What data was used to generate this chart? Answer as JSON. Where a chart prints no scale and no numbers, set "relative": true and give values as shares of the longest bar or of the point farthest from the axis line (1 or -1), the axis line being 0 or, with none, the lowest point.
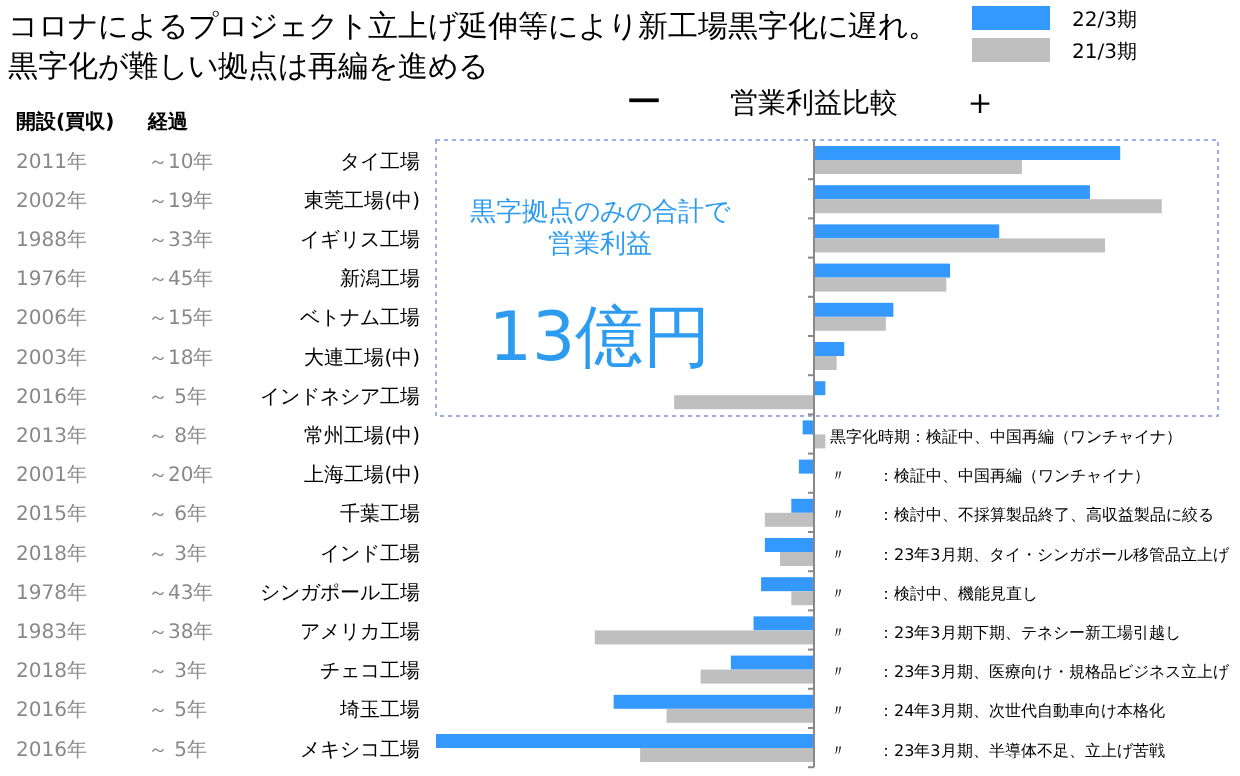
{
  "chart_data": {
    "type": "bar",
    "orientation": "horizontal",
    "relative": true,
    "title": "コロナによるプロジェクト立上げ延伸等により新工場黒字化に遅れ。黒字化が難しい拠点は再編を進める",
    "subtitle": "営業利益比較",
    "legend": "top right",
    "categories": [
      "タイ工場",
      "東莞工場(中)",
      "イギリス工場",
      "新潟工場",
      "ベトナム工場",
      "大連工場(中)",
      "インドネシア工場",
      "常州工場(中)",
      "上海工場(中)",
      "千葉工場",
      "インド工場",
      "シンガポール工場",
      "アメリカ工場",
      "チェコ工場",
      "埼玉工場",
      "メキシコ工場"
    ],
    "series": [
      {
        "name": "22/3期",
        "color": "#3399ff",
        "values": [
          0.81,
          0.73,
          0.49,
          0.36,
          0.21,
          0.08,
          0.03,
          -0.03,
          -0.04,
          -0.06,
          -0.13,
          -0.14,
          -0.16,
          -0.22,
          -0.53,
          -1
        ]
      },
      {
        "name": "21/3期",
        "color": "#bfbfbf",
        "values": [
          0.55,
          0.92,
          0.77,
          0.35,
          0.19,
          0.06,
          -0.37,
          0.03,
          null,
          -0.13,
          -0.09,
          -0.06,
          -0.58,
          -0.3,
          -0.39,
          -0.46
        ]
      }
    ],
    "annotations": [
      "開設(買収)",
      "経過",
      "ー",
      "＋",
      "黒字拠点のみの合計で営業利益",
      "13億円",
      "2011年",
      "2002年",
      "1988年",
      "1976年",
      "2006年",
      "2003年",
      "2016年",
      "2013年",
      "2001年",
      "2015年",
      "2018年",
      "1978年",
      "1983年",
      "2018年",
      "2016年",
      "2016年",
      "～10年",
      "～19年",
      "～33年",
      "～45年",
      "～15年",
      "～18年",
      "～ 5年",
      "～ 8年",
      "～20年",
      "～ 6年",
      "～ 3年",
      "～43年",
      "～38年",
      "～ 3年",
      "～ 5年",
      "～ 5年",
      "黒字化時期：検証中、中国再編（ワンチャイナ）",
      "〃　　：検証中、中国再編（ワンチャイナ）",
      "〃　　：検討中、不採算製品終了、高収益製品に絞る",
      "〃　　：23年3月期、タイ・シンガポール移管品立上げ",
      "〃　　：検討中、機能見直し",
      "〃　　：23年3月期下期、テネシー新工場引越し",
      "〃　　：23年3月期、医療向け・規格品ビジネス立上げ",
      "〃　　：24年3月期、次世代自動車向け本格化",
      "〃　　：23年3月期、半導体不足、立上げ苦戦"
    ]
  }
}
